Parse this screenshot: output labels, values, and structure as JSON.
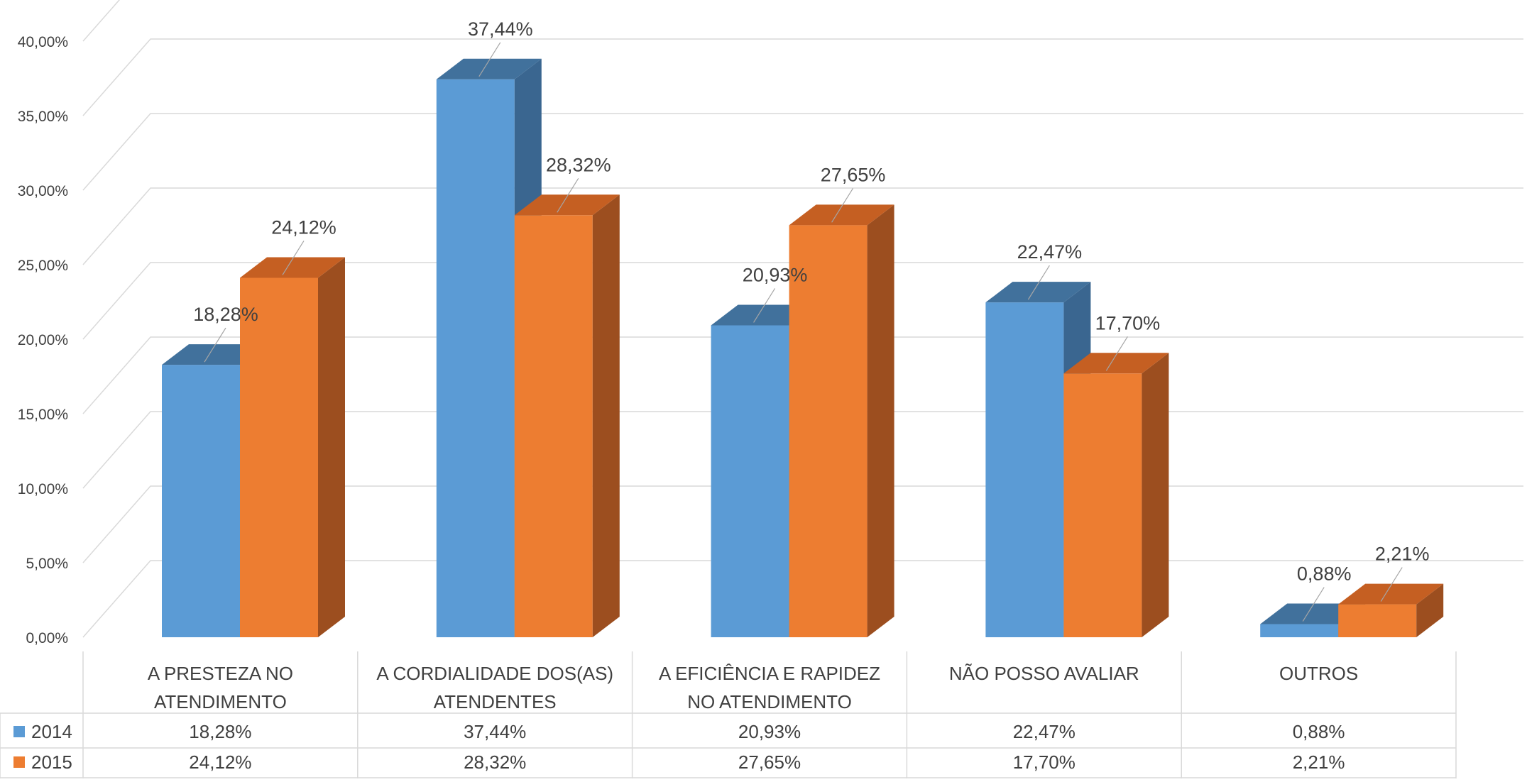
{
  "chart_data": {
    "type": "bar",
    "style": "3d-clustered-column-with-data-table",
    "categories": [
      [
        "A PRESTEZA NO",
        "ATENDIMENTO"
      ],
      [
        "A CORDIALIDADE DOS(AS)",
        "ATENDENTES"
      ],
      [
        "A EFICIÊNCIA E RAPIDEZ",
        "NO ATENDIMENTO"
      ],
      [
        "NÃO POSSO AVALIAR"
      ],
      [
        "OUTROS"
      ]
    ],
    "series": [
      {
        "name": "2014",
        "color": "#5B9BD5",
        "top_color": "#41719C",
        "side_color": "#3A6690",
        "values": [
          18.28,
          37.44,
          20.93,
          22.47,
          0.88
        ],
        "labels": [
          "18,28%",
          "37,44%",
          "20,93%",
          "22,47%",
          "0,88%"
        ]
      },
      {
        "name": "2015",
        "color": "#ED7D31",
        "top_color": "#C55F22",
        "side_color": "#9C4E1F",
        "values": [
          24.12,
          28.32,
          27.65,
          17.7,
          2.21
        ],
        "labels": [
          "24,12%",
          "28,32%",
          "27,65%",
          "17,70%",
          "2,21%"
        ]
      }
    ],
    "y_ticks": [
      "0,00%",
      "5,00%",
      "10,00%",
      "15,00%",
      "20,00%",
      "25,00%",
      "30,00%",
      "35,00%",
      "40,00%"
    ],
    "ylim": [
      0,
      40
    ],
    "grid": true,
    "legend": "data-table"
  }
}
